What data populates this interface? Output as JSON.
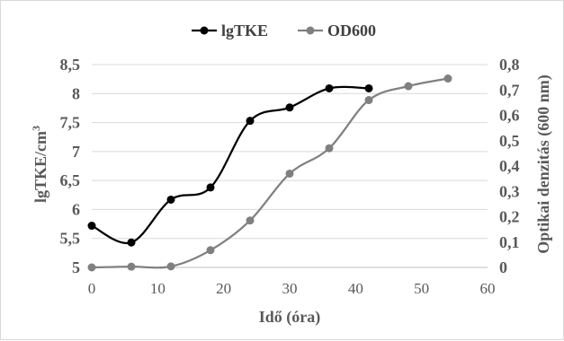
{
  "chart_data": {
    "type": "line",
    "x_axis": {
      "label": "Idő (óra)",
      "min": 0,
      "max": 60,
      "ticks": [
        "0",
        "10",
        "20",
        "30",
        "40",
        "50",
        "60"
      ]
    },
    "y_left": {
      "label": "lgTKE/cm",
      "label_sup": "3",
      "min": 5,
      "max": 8.5,
      "ticks": [
        "5",
        "5,5",
        "6",
        "6,5",
        "7",
        "7,5",
        "8",
        "8,5"
      ]
    },
    "y_right": {
      "label": "Optikai denzitás (600 nm)",
      "min": 0,
      "max": 0.8,
      "ticks": [
        "0",
        "0,1",
        "0,2",
        "0,3",
        "0,4",
        "0,5",
        "0,6",
        "0,7",
        "0,8"
      ]
    },
    "grid": "horizontal",
    "legend_position": "top",
    "series": [
      {
        "name": "lgTKE",
        "axis": "left",
        "color": "#000000",
        "x": [
          0,
          6,
          12,
          18,
          24,
          30,
          36,
          42
        ],
        "y": [
          5.72,
          5.43,
          6.17,
          6.38,
          7.53,
          7.76,
          8.09,
          8.09
        ]
      },
      {
        "name": "OD600",
        "axis": "right",
        "color": "#808080",
        "x": [
          0,
          6,
          12,
          18,
          24,
          30,
          36,
          42,
          48,
          54
        ],
        "y": [
          0.0,
          0.003,
          0.004,
          0.068,
          0.185,
          0.37,
          0.47,
          0.66,
          0.715,
          0.745
        ]
      }
    ]
  }
}
